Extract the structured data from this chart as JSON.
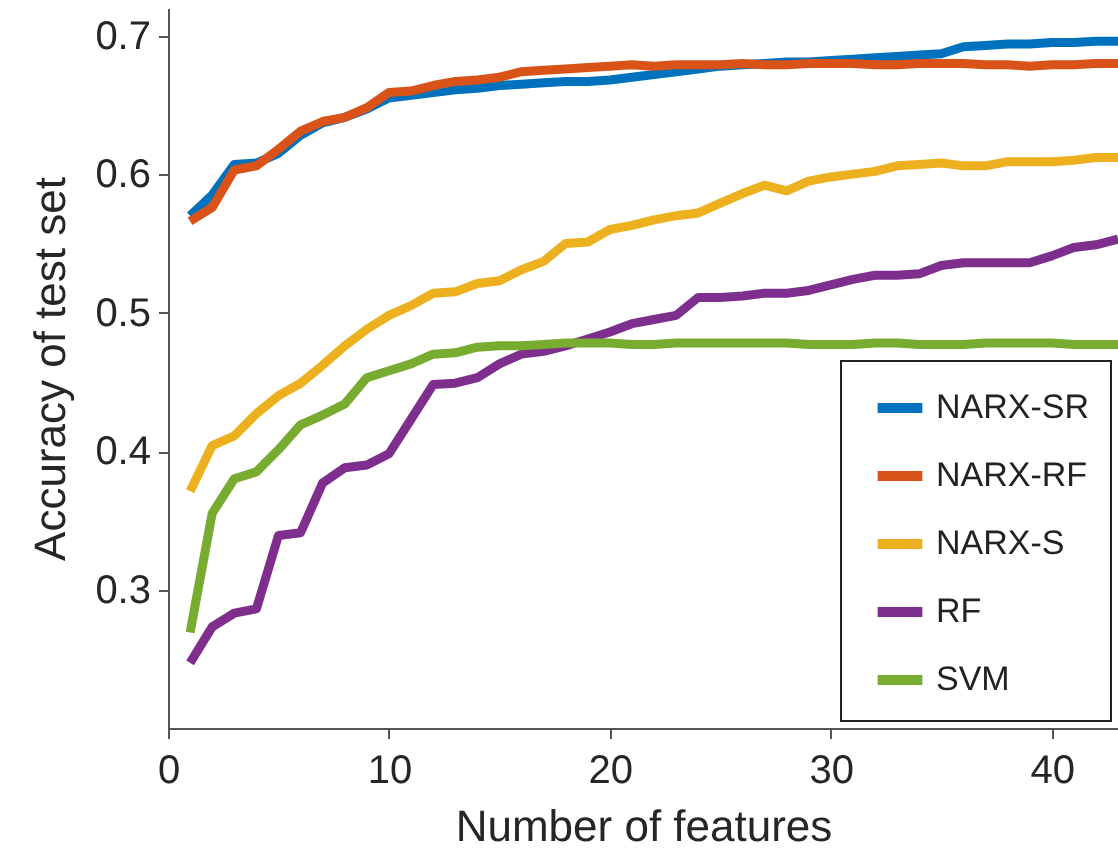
{
  "chart_data": {
    "type": "line",
    "xlabel": "Number of features",
    "ylabel": "Accuracy of test set",
    "x": [
      1,
      2,
      3,
      4,
      5,
      6,
      7,
      8,
      9,
      10,
      11,
      12,
      13,
      14,
      15,
      16,
      17,
      18,
      19,
      20,
      21,
      22,
      23,
      24,
      25,
      26,
      27,
      28,
      29,
      30,
      31,
      32,
      33,
      34,
      35,
      36,
      37,
      38,
      39,
      40,
      41,
      42,
      43
    ],
    "series": [
      {
        "name": "NARX-SR",
        "color": "#0072bd",
        "values": [
          0.57,
          0.585,
          0.607,
          0.608,
          0.615,
          0.628,
          0.637,
          0.641,
          0.647,
          0.655,
          0.657,
          0.659,
          0.661,
          0.662,
          0.664,
          0.665,
          0.666,
          0.667,
          0.667,
          0.668,
          0.67,
          0.672,
          0.674,
          0.676,
          0.678,
          0.679,
          0.68,
          0.681,
          0.681,
          0.682,
          0.683,
          0.684,
          0.685,
          0.686,
          0.687,
          0.692,
          0.693,
          0.694,
          0.694,
          0.695,
          0.695,
          0.696,
          0.696
        ]
      },
      {
        "name": "NARX-RF",
        "color": "#d95319",
        "values": [
          0.566,
          0.576,
          0.603,
          0.606,
          0.618,
          0.631,
          0.638,
          0.641,
          0.648,
          0.659,
          0.66,
          0.664,
          0.667,
          0.668,
          0.67,
          0.674,
          0.675,
          0.676,
          0.677,
          0.678,
          0.679,
          0.678,
          0.679,
          0.679,
          0.679,
          0.68,
          0.679,
          0.679,
          0.68,
          0.68,
          0.68,
          0.679,
          0.679,
          0.68,
          0.68,
          0.68,
          0.679,
          0.679,
          0.678,
          0.679,
          0.679,
          0.68,
          0.68
        ]
      },
      {
        "name": "NARX-S",
        "color": "#edb120",
        "values": [
          0.371,
          0.404,
          0.411,
          0.427,
          0.44,
          0.449,
          0.462,
          0.476,
          0.488,
          0.498,
          0.505,
          0.514,
          0.515,
          0.521,
          0.523,
          0.531,
          0.537,
          0.55,
          0.551,
          0.56,
          0.563,
          0.567,
          0.57,
          0.572,
          0.579,
          0.586,
          0.592,
          0.588,
          0.595,
          0.598,
          0.6,
          0.602,
          0.606,
          0.607,
          0.608,
          0.606,
          0.606,
          0.609,
          0.609,
          0.609,
          0.61,
          0.612,
          0.612
        ]
      },
      {
        "name": "RF",
        "color": "#7e2f8e",
        "values": [
          0.247,
          0.273,
          0.283,
          0.286,
          0.339,
          0.341,
          0.377,
          0.388,
          0.39,
          0.398,
          0.423,
          0.448,
          0.449,
          0.453,
          0.463,
          0.47,
          0.472,
          0.476,
          0.481,
          0.486,
          0.492,
          0.495,
          0.498,
          0.511,
          0.511,
          0.512,
          0.514,
          0.514,
          0.516,
          0.52,
          0.524,
          0.527,
          0.527,
          0.528,
          0.534,
          0.536,
          0.536,
          0.536,
          0.536,
          0.541,
          0.547,
          0.549,
          0.553
        ]
      },
      {
        "name": "SVM",
        "color": "#77ac30",
        "values": [
          0.269,
          0.355,
          0.38,
          0.385,
          0.401,
          0.419,
          0.426,
          0.434,
          0.453,
          0.458,
          0.463,
          0.47,
          0.471,
          0.475,
          0.476,
          0.476,
          0.477,
          0.478,
          0.478,
          0.478,
          0.477,
          0.477,
          0.478,
          0.478,
          0.478,
          0.478,
          0.478,
          0.478,
          0.477,
          0.477,
          0.477,
          0.478,
          0.478,
          0.477,
          0.477,
          0.477,
          0.478,
          0.478,
          0.478,
          0.478,
          0.477,
          0.477,
          0.477
        ]
      }
    ],
    "xlim": [
      0,
      43
    ],
    "xticks": [
      0,
      10,
      20,
      30,
      40
    ],
    "ylim": [
      0.2,
      0.72
    ],
    "yticks": [
      0.3,
      0.4,
      0.5,
      0.6,
      0.7
    ],
    "grid": false,
    "legend": "bottom right",
    "line_style": "solid",
    "marker": "none"
  }
}
